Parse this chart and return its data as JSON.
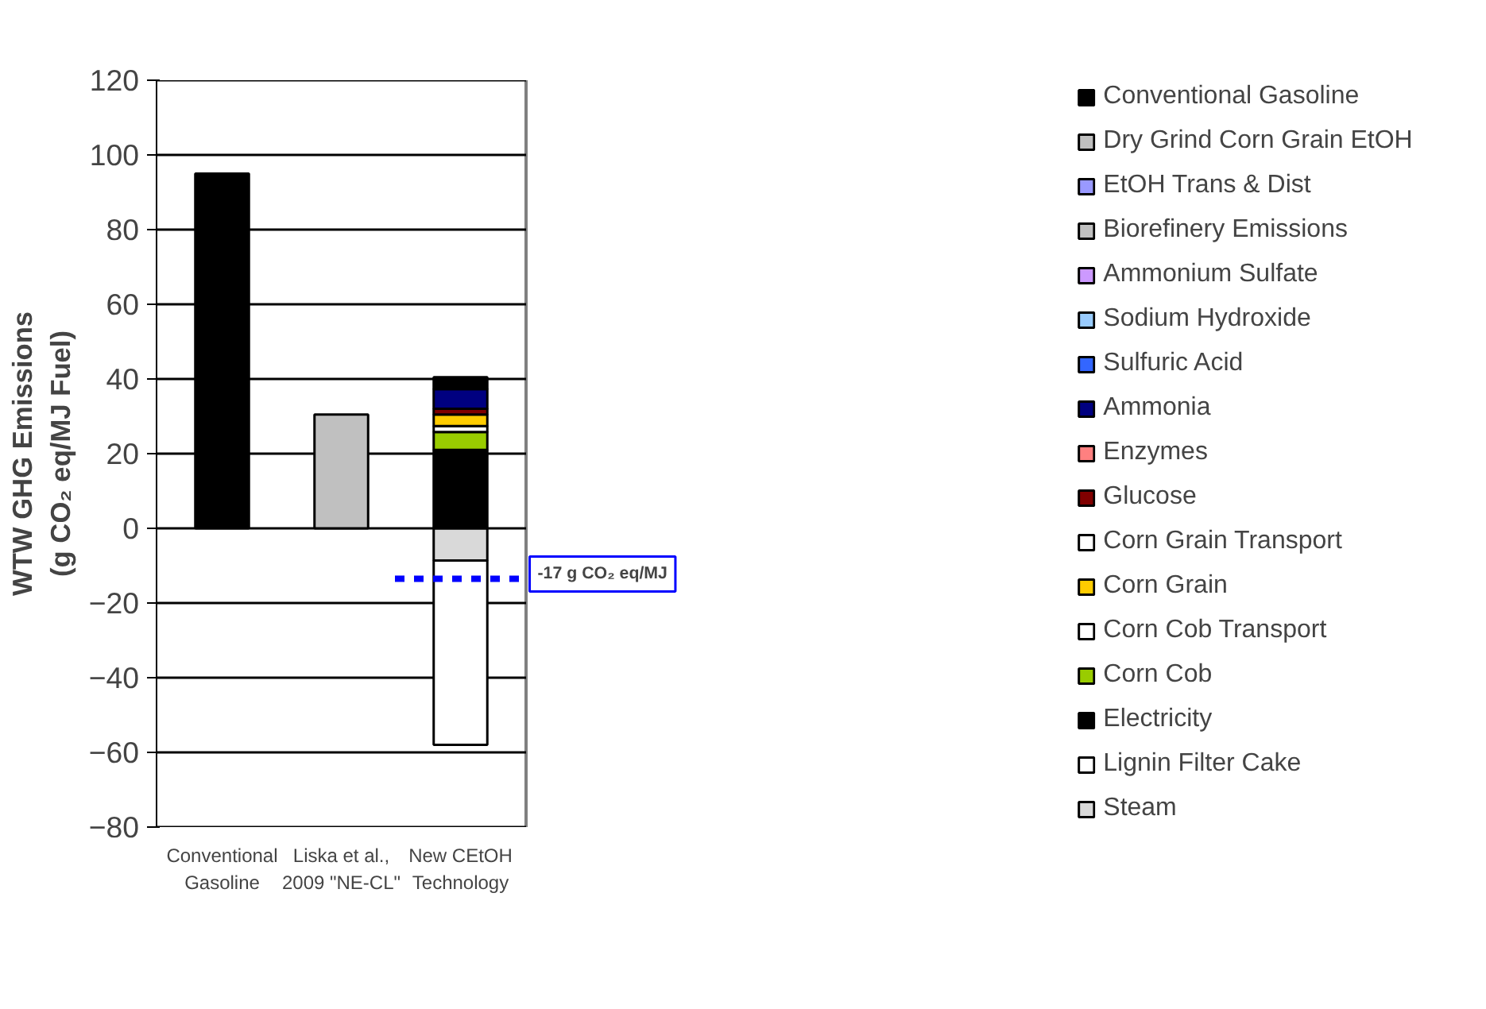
{
  "chart_data": {
    "type": "bar",
    "stacked": true,
    "ylabel": "WTW GHG Emissions\n(g CO₂ eq/MJ Fuel)",
    "categories": [
      "Conventional\nGasoline",
      "Liska et al.,\n2009 \"NE-CL\"",
      "New CEtOH\nTechnology"
    ],
    "series": [
      {
        "name": "Steam",
        "color": "#d9d9d9",
        "values": [
          null,
          null,
          -8.6
        ]
      },
      {
        "name": "Lignin Filter Cake",
        "color": "#ffffff",
        "values": [
          null,
          null,
          -49.4
        ]
      },
      {
        "name": "Electricity",
        "color": "#000000",
        "values": [
          null,
          null,
          21.0
        ]
      },
      {
        "name": "Corn Cob",
        "color": "#99cc00",
        "values": [
          null,
          null,
          4.8
        ]
      },
      {
        "name": "Corn Cob Transport",
        "color": "#ffffff",
        "values": [
          null,
          null,
          1.6
        ]
      },
      {
        "name": "Corn Grain",
        "color": "#ffcc00",
        "values": [
          null,
          null,
          3.1
        ]
      },
      {
        "name": "Corn Grain Transport",
        "color": "#ffffff",
        "values": [
          null,
          null,
          null
        ]
      },
      {
        "name": "Glucose",
        "color": "#800000",
        "values": [
          null,
          null,
          1.5
        ]
      },
      {
        "name": "Enzymes",
        "color": "#ff8080",
        "values": [
          null,
          null,
          null
        ]
      },
      {
        "name": "Ammonia",
        "color": "#000080",
        "values": [
          null,
          null,
          5.3
        ]
      },
      {
        "name": "Sulfuric Acid",
        "color": "#3366ff",
        "values": [
          null,
          null,
          null
        ]
      },
      {
        "name": "Sodium Hydroxide",
        "color": "#99ccff",
        "values": [
          null,
          null,
          null
        ]
      },
      {
        "name": "Ammonium Sulfate",
        "color": "#cc99ff",
        "values": [
          null,
          null,
          null
        ]
      },
      {
        "name": "Biorefinery Emissions",
        "color": "#c0c0c0",
        "values": [
          null,
          null,
          null
        ]
      },
      {
        "name": "EtOH Trans & Dist",
        "color": "#9999ff",
        "values": [
          null,
          null,
          null
        ]
      },
      {
        "name": "Dry Grind Corn Grain EtOH",
        "color": "#c0c0c0",
        "values": [
          null,
          30.5,
          null
        ]
      },
      {
        "name": "Conventional Gasoline",
        "color": "#000000",
        "values": [
          95,
          null,
          null
        ]
      },
      {
        "color": "#000000",
        "values": [
          null,
          null,
          3.2
        ]
      }
    ],
    "ylim": [
      -80,
      120
    ],
    "yticks": [
      -80,
      -60,
      -40,
      -20,
      0,
      20,
      40,
      60,
      80,
      100,
      120
    ],
    "grid": "y",
    "legend": "right",
    "ref_lines": [
      {
        "axis": "y",
        "value": -13.5,
        "label": "-17 g CO₂ eq/MJ",
        "color": "#0000ff",
        "line_style": "dashed"
      }
    ]
  }
}
